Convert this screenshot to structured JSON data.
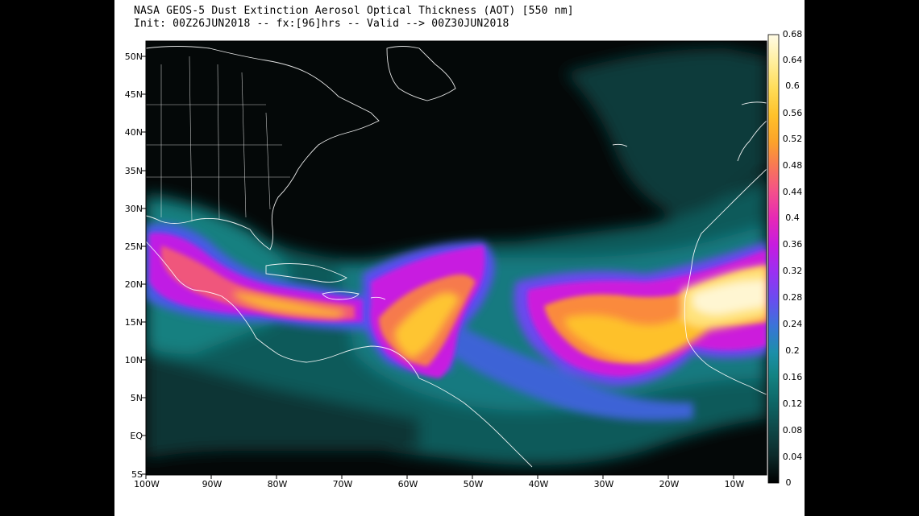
{
  "title": {
    "line1": "NASA GEOS-5 Dust Extinction Aerosol Optical Thickness (AOT) [550 nm]",
    "line2": "Init: 00Z26JUN2018 -- fx:[96]hrs -- Valid --> 00Z30JUN2018"
  },
  "axes": {
    "lat_labels": [
      "50N",
      "45N",
      "40N",
      "35N",
      "30N",
      "25N",
      "20N",
      "15N",
      "10N",
      "5N",
      "EQ",
      "5S"
    ],
    "lon_labels": [
      "100W",
      "90W",
      "80W",
      "70W",
      "60W",
      "50W",
      "40W",
      "30W",
      "20W",
      "10W"
    ]
  },
  "colorbar": {
    "labels": [
      "0.68",
      "0.64",
      "0.6",
      "0.56",
      "0.52",
      "0.48",
      "0.44",
      "0.4",
      "0.36",
      "0.32",
      "0.28",
      "0.24",
      "0.2",
      "0.16",
      "0.12",
      "0.08",
      "0.04",
      "0"
    ],
    "colors": [
      "#000000",
      "#0c2a2a",
      "#0f4848",
      "#0e6666",
      "#138383",
      "#1c8fa8",
      "#3a74d8",
      "#6a4cf0",
      "#9a30f2",
      "#c61ce0",
      "#e628b6",
      "#f4508a",
      "#f87a52",
      "#fca22a",
      "#fec12a",
      "#ffdc58",
      "#ffef9e",
      "#fffbe6"
    ]
  },
  "chart_data": {
    "type": "heatmap",
    "title": "NASA GEOS-5 Dust Extinction Aerosol Optical Thickness (AOT) [550 nm]",
    "subtitle": "Init: 00Z26JUN2018 -- fx:[96]hrs -- Valid --> 00Z30JUN2018",
    "x_range": [
      -100,
      -5
    ],
    "y_range": [
      -5,
      52
    ],
    "value_range": [
      0,
      0.68
    ],
    "plumes": [
      {
        "lon": -12,
        "lat": 18,
        "aot": 0.62
      },
      {
        "lon": -30,
        "lat": 14,
        "aot": 0.5
      },
      {
        "lon": -58,
        "lat": 16,
        "aot": 0.45
      },
      {
        "lon": -77,
        "lat": 18,
        "aot": 0.38
      },
      {
        "lon": -95,
        "lat": 21,
        "aot": 0.33
      }
    ]
  }
}
